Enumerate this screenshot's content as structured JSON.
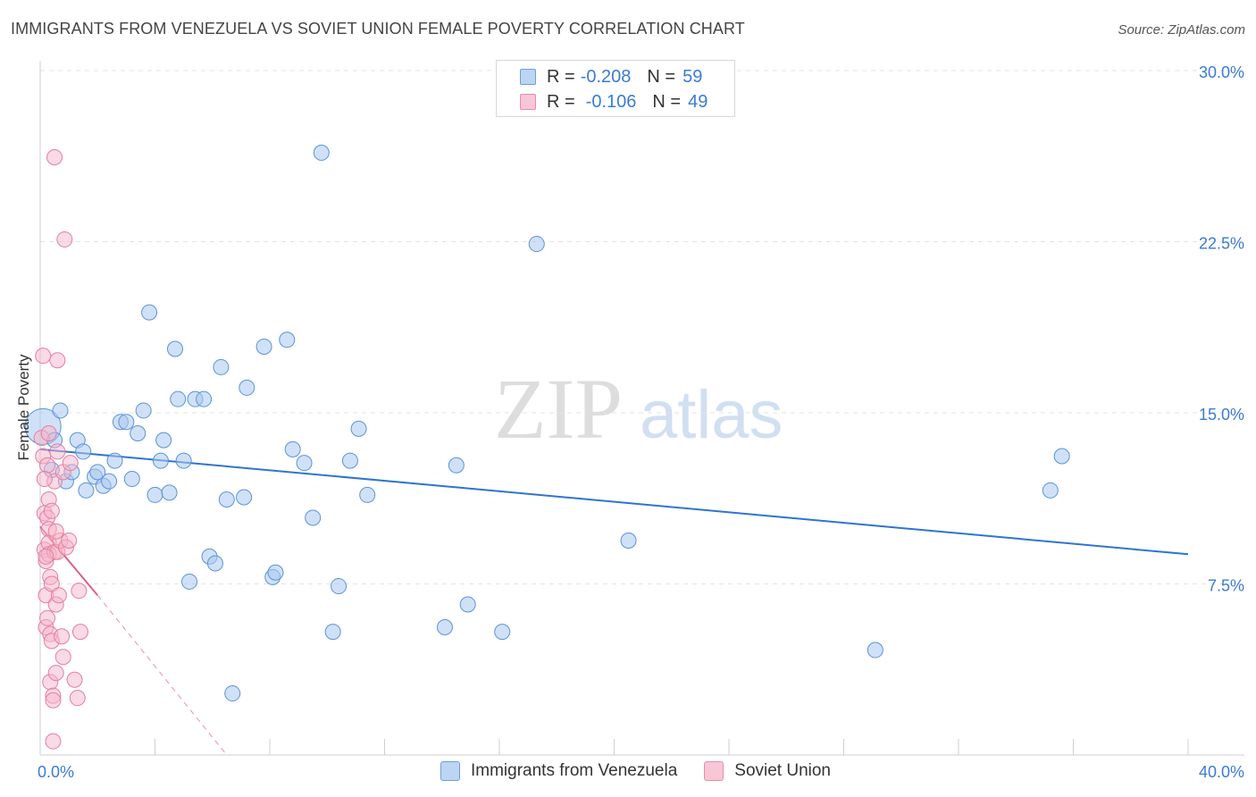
{
  "title": "IMMIGRANTS FROM VENEZUELA VS SOVIET UNION FEMALE POVERTY CORRELATION CHART",
  "source": "Source: ZipAtlas.com",
  "watermark": {
    "zip": "ZIP",
    "atlas": "atlas"
  },
  "legend": {
    "rows": [
      {
        "r_label": "R =",
        "r_value": "-0.208",
        "n_label": "N =",
        "n_value": "59"
      },
      {
        "r_label": "R =",
        "r_value": "-0.106",
        "n_label": "N =",
        "n_value": "49"
      }
    ]
  },
  "colors": {
    "blue_fill": "#a9c8f0",
    "blue_stroke": "#5b93d8",
    "blue_line": "#2f74d0",
    "pink_fill": "#f6b5c9",
    "pink_stroke": "#e57ea0",
    "pink_line": "#e0608a",
    "axis_text": "#3a7bd5",
    "grid": "#e3e3e3"
  },
  "chart_data": {
    "type": "scatter",
    "title": "IMMIGRANTS FROM VENEZUELA VS SOVIET UNION FEMALE POVERTY CORRELATION CHART",
    "xlabel": "",
    "ylabel": "Female Poverty",
    "xlim": [
      0,
      40
    ],
    "ylim": [
      0,
      30
    ],
    "x_tick_labels": [
      "0.0%",
      "40.0%"
    ],
    "y_ticks": [
      7.5,
      15.0,
      22.5,
      30.0
    ],
    "y_tick_labels": [
      "7.5%",
      "15.0%",
      "22.5%",
      "30.0%"
    ],
    "grid": true,
    "legend_position": "top-center",
    "series": [
      {
        "name": "Immigrants from Venezuela",
        "color": "blue",
        "trend": {
          "x": [
            0,
            40
          ],
          "y": [
            13.4,
            8.8
          ]
        },
        "points": [
          [
            0.1,
            14.4
          ],
          [
            0.4,
            12.5
          ],
          [
            0.5,
            13.8
          ],
          [
            0.7,
            15.1
          ],
          [
            0.9,
            12.0
          ],
          [
            1.1,
            12.4
          ],
          [
            1.3,
            13.8
          ],
          [
            1.5,
            13.3
          ],
          [
            1.6,
            11.6
          ],
          [
            1.9,
            12.2
          ],
          [
            2.0,
            12.4
          ],
          [
            2.2,
            11.8
          ],
          [
            2.4,
            12.0
          ],
          [
            2.6,
            12.9
          ],
          [
            2.8,
            14.6
          ],
          [
            3.0,
            14.6
          ],
          [
            3.2,
            12.1
          ],
          [
            3.4,
            14.1
          ],
          [
            3.6,
            15.1
          ],
          [
            3.8,
            19.4
          ],
          [
            4.0,
            11.4
          ],
          [
            4.2,
            12.9
          ],
          [
            4.3,
            13.8
          ],
          [
            4.5,
            11.5
          ],
          [
            4.7,
            17.8
          ],
          [
            4.8,
            15.6
          ],
          [
            5.0,
            12.9
          ],
          [
            5.2,
            7.6
          ],
          [
            5.4,
            15.6
          ],
          [
            5.7,
            15.6
          ],
          [
            5.9,
            8.7
          ],
          [
            6.1,
            8.4
          ],
          [
            6.3,
            17.0
          ],
          [
            6.5,
            11.2
          ],
          [
            6.7,
            2.7
          ],
          [
            7.1,
            11.3
          ],
          [
            7.2,
            16.1
          ],
          [
            7.8,
            17.9
          ],
          [
            8.1,
            7.8
          ],
          [
            8.2,
            8.0
          ],
          [
            8.6,
            18.2
          ],
          [
            8.8,
            13.4
          ],
          [
            9.2,
            12.8
          ],
          [
            9.5,
            10.4
          ],
          [
            9.8,
            26.4
          ],
          [
            10.2,
            5.4
          ],
          [
            10.4,
            7.4
          ],
          [
            10.8,
            12.9
          ],
          [
            11.1,
            14.3
          ],
          [
            11.4,
            11.4
          ],
          [
            14.1,
            5.6
          ],
          [
            14.5,
            12.7
          ],
          [
            14.9,
            6.6
          ],
          [
            16.1,
            5.4
          ],
          [
            17.3,
            22.4
          ],
          [
            20.5,
            9.4
          ],
          [
            29.1,
            4.6
          ],
          [
            35.2,
            11.6
          ],
          [
            35.6,
            13.1
          ]
        ]
      },
      {
        "name": "Soviet Union",
        "color": "pink",
        "trend": {
          "x": [
            0,
            2.0
          ],
          "y": [
            10.0,
            7.0
          ]
        },
        "trend_extended": {
          "x": [
            2.0,
            6.5
          ],
          "y": [
            7.0,
            0.0
          ]
        },
        "points": [
          [
            0.05,
            13.9
          ],
          [
            0.1,
            17.5
          ],
          [
            0.1,
            13.1
          ],
          [
            0.15,
            10.6
          ],
          [
            0.15,
            9.0
          ],
          [
            0.2,
            8.5
          ],
          [
            0.2,
            7.0
          ],
          [
            0.2,
            5.6
          ],
          [
            0.25,
            12.7
          ],
          [
            0.25,
            10.4
          ],
          [
            0.25,
            6.0
          ],
          [
            0.3,
            14.1
          ],
          [
            0.3,
            11.2
          ],
          [
            0.3,
            9.9
          ],
          [
            0.3,
            9.3
          ],
          [
            0.3,
            8.8
          ],
          [
            0.35,
            7.8
          ],
          [
            0.35,
            5.3
          ],
          [
            0.35,
            3.2
          ],
          [
            0.4,
            10.7
          ],
          [
            0.4,
            7.5
          ],
          [
            0.4,
            5.0
          ],
          [
            0.45,
            2.6
          ],
          [
            0.45,
            2.4
          ],
          [
            0.45,
            0.6
          ],
          [
            0.5,
            12.0
          ],
          [
            0.5,
            8.9
          ],
          [
            0.55,
            6.6
          ],
          [
            0.55,
            3.6
          ],
          [
            0.6,
            17.3
          ],
          [
            0.6,
            13.3
          ],
          [
            0.6,
            8.9
          ],
          [
            0.65,
            7.0
          ],
          [
            0.7,
            9.4
          ],
          [
            0.75,
            5.2
          ],
          [
            0.8,
            4.3
          ],
          [
            0.8,
            12.4
          ],
          [
            0.85,
            22.6
          ],
          [
            0.9,
            9.1
          ],
          [
            1.0,
            9.4
          ],
          [
            1.05,
            12.8
          ],
          [
            1.2,
            3.3
          ],
          [
            1.3,
            2.5
          ],
          [
            1.35,
            7.2
          ],
          [
            1.4,
            5.4
          ],
          [
            0.5,
            26.2
          ],
          [
            0.15,
            12.1
          ],
          [
            0.2,
            8.7
          ],
          [
            0.55,
            9.8
          ]
        ]
      }
    ]
  },
  "bottom_legend": [
    "Immigrants from Venezuela",
    "Soviet Union"
  ]
}
